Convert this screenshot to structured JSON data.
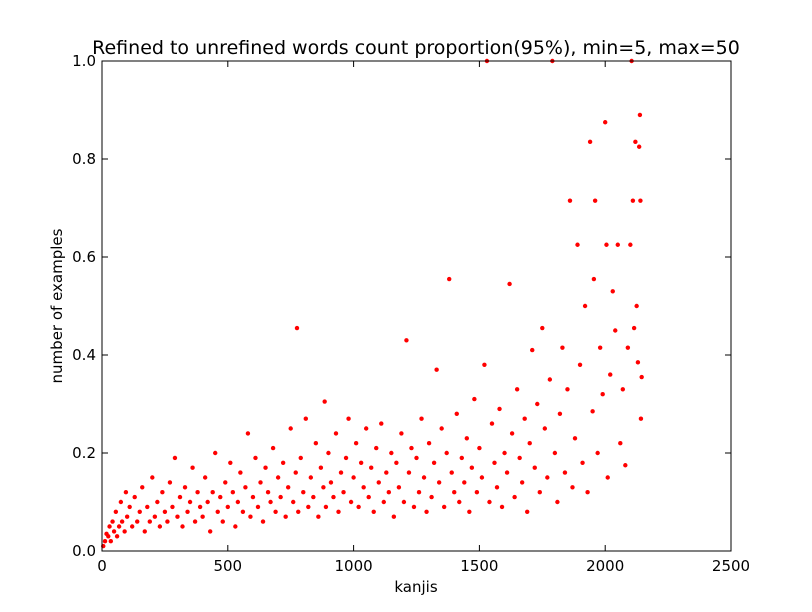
{
  "chart_data": {
    "type": "scatter",
    "title": "Refined to unrefined words count proportion(95%), min=5, max=50",
    "xlabel": "kanjis",
    "ylabel": "number of examples",
    "xlim": [
      0,
      2500
    ],
    "ylim": [
      0,
      1.0
    ],
    "xticks": [
      0,
      500,
      1000,
      1500,
      2000,
      2500
    ],
    "yticks": [
      0.0,
      0.2,
      0.4,
      0.6,
      0.8,
      1.0
    ],
    "xtick_labels": [
      "0",
      "500",
      "1000",
      "1500",
      "2000",
      "2500"
    ],
    "ytick_labels": [
      "0.0",
      "0.2",
      "0.4",
      "0.6",
      "0.8",
      "1.0"
    ],
    "grid": false,
    "marker_color": "#ff0000",
    "points": [
      [
        5,
        0.01
      ],
      [
        12,
        0.02
      ],
      [
        18,
        0.035
      ],
      [
        25,
        0.03
      ],
      [
        30,
        0.05
      ],
      [
        35,
        0.02
      ],
      [
        42,
        0.06
      ],
      [
        48,
        0.04
      ],
      [
        55,
        0.08
      ],
      [
        60,
        0.03
      ],
      [
        68,
        0.05
      ],
      [
        75,
        0.1
      ],
      [
        80,
        0.06
      ],
      [
        90,
        0.04
      ],
      [
        95,
        0.12
      ],
      [
        100,
        0.07
      ],
      [
        110,
        0.09
      ],
      [
        120,
        0.05
      ],
      [
        130,
        0.11
      ],
      [
        140,
        0.06
      ],
      [
        150,
        0.08
      ],
      [
        160,
        0.13
      ],
      [
        170,
        0.04
      ],
      [
        180,
        0.09
      ],
      [
        190,
        0.06
      ],
      [
        200,
        0.15
      ],
      [
        210,
        0.07
      ],
      [
        220,
        0.1
      ],
      [
        230,
        0.05
      ],
      [
        240,
        0.12
      ],
      [
        250,
        0.08
      ],
      [
        260,
        0.06
      ],
      [
        270,
        0.14
      ],
      [
        280,
        0.09
      ],
      [
        290,
        0.19
      ],
      [
        300,
        0.07
      ],
      [
        310,
        0.11
      ],
      [
        320,
        0.05
      ],
      [
        330,
        0.13
      ],
      [
        340,
        0.08
      ],
      [
        350,
        0.1
      ],
      [
        360,
        0.17
      ],
      [
        370,
        0.06
      ],
      [
        380,
        0.12
      ],
      [
        390,
        0.09
      ],
      [
        400,
        0.07
      ],
      [
        410,
        0.15
      ],
      [
        420,
        0.1
      ],
      [
        430,
        0.04
      ],
      [
        440,
        0.12
      ],
      [
        450,
        0.2
      ],
      [
        460,
        0.08
      ],
      [
        470,
        0.11
      ],
      [
        480,
        0.06
      ],
      [
        490,
        0.14
      ],
      [
        500,
        0.09
      ],
      [
        510,
        0.18
      ],
      [
        520,
        0.12
      ],
      [
        530,
        0.05
      ],
      [
        540,
        0.1
      ],
      [
        550,
        0.16
      ],
      [
        560,
        0.08
      ],
      [
        570,
        0.13
      ],
      [
        580,
        0.24
      ],
      [
        590,
        0.07
      ],
      [
        600,
        0.11
      ],
      [
        610,
        0.19
      ],
      [
        620,
        0.09
      ],
      [
        630,
        0.14
      ],
      [
        640,
        0.06
      ],
      [
        650,
        0.17
      ],
      [
        660,
        0.12
      ],
      [
        670,
        0.1
      ],
      [
        680,
        0.21
      ],
      [
        690,
        0.08
      ],
      [
        700,
        0.15
      ],
      [
        710,
        0.11
      ],
      [
        720,
        0.18
      ],
      [
        730,
        0.07
      ],
      [
        740,
        0.13
      ],
      [
        750,
        0.25
      ],
      [
        760,
        0.1
      ],
      [
        770,
        0.16
      ],
      [
        775,
        0.455
      ],
      [
        780,
        0.08
      ],
      [
        790,
        0.19
      ],
      [
        800,
        0.12
      ],
      [
        810,
        0.27
      ],
      [
        820,
        0.09
      ],
      [
        830,
        0.15
      ],
      [
        840,
        0.11
      ],
      [
        850,
        0.22
      ],
      [
        860,
        0.07
      ],
      [
        870,
        0.17
      ],
      [
        880,
        0.13
      ],
      [
        885,
        0.305
      ],
      [
        890,
        0.09
      ],
      [
        900,
        0.2
      ],
      [
        910,
        0.14
      ],
      [
        920,
        0.11
      ],
      [
        930,
        0.24
      ],
      [
        940,
        0.08
      ],
      [
        950,
        0.16
      ],
      [
        960,
        0.12
      ],
      [
        970,
        0.19
      ],
      [
        980,
        0.27
      ],
      [
        990,
        0.1
      ],
      [
        1000,
        0.15
      ],
      [
        1010,
        0.22
      ],
      [
        1020,
        0.09
      ],
      [
        1030,
        0.18
      ],
      [
        1040,
        0.13
      ],
      [
        1050,
        0.25
      ],
      [
        1060,
        0.11
      ],
      [
        1070,
        0.17
      ],
      [
        1080,
        0.08
      ],
      [
        1090,
        0.21
      ],
      [
        1100,
        0.14
      ],
      [
        1110,
        0.26
      ],
      [
        1120,
        0.1
      ],
      [
        1130,
        0.16
      ],
      [
        1140,
        0.12
      ],
      [
        1150,
        0.2
      ],
      [
        1160,
        0.07
      ],
      [
        1170,
        0.18
      ],
      [
        1180,
        0.13
      ],
      [
        1190,
        0.24
      ],
      [
        1200,
        0.1
      ],
      [
        1210,
        0.43
      ],
      [
        1220,
        0.16
      ],
      [
        1230,
        0.21
      ],
      [
        1240,
        0.09
      ],
      [
        1250,
        0.19
      ],
      [
        1260,
        0.12
      ],
      [
        1270,
        0.27
      ],
      [
        1280,
        0.15
      ],
      [
        1290,
        0.08
      ],
      [
        1300,
        0.22
      ],
      [
        1310,
        0.11
      ],
      [
        1320,
        0.18
      ],
      [
        1330,
        0.37
      ],
      [
        1340,
        0.14
      ],
      [
        1350,
        0.25
      ],
      [
        1360,
        0.09
      ],
      [
        1370,
        0.2
      ],
      [
        1380,
        0.555
      ],
      [
        1390,
        0.16
      ],
      [
        1400,
        0.12
      ],
      [
        1410,
        0.28
      ],
      [
        1420,
        0.1
      ],
      [
        1430,
        0.19
      ],
      [
        1440,
        0.14
      ],
      [
        1450,
        0.23
      ],
      [
        1460,
        0.08
      ],
      [
        1470,
        0.17
      ],
      [
        1480,
        0.31
      ],
      [
        1490,
        0.12
      ],
      [
        1500,
        0.21
      ],
      [
        1510,
        0.15
      ],
      [
        1520,
        0.38
      ],
      [
        1530,
        1.0
      ],
      [
        1540,
        0.1
      ],
      [
        1550,
        0.26
      ],
      [
        1560,
        0.18
      ],
      [
        1570,
        0.13
      ],
      [
        1580,
        0.29
      ],
      [
        1590,
        0.09
      ],
      [
        1600,
        0.2
      ],
      [
        1610,
        0.16
      ],
      [
        1620,
        0.545
      ],
      [
        1630,
        0.24
      ],
      [
        1640,
        0.11
      ],
      [
        1650,
        0.33
      ],
      [
        1660,
        0.19
      ],
      [
        1670,
        0.14
      ],
      [
        1680,
        0.27
      ],
      [
        1690,
        0.08
      ],
      [
        1700,
        0.22
      ],
      [
        1710,
        0.41
      ],
      [
        1720,
        0.17
      ],
      [
        1730,
        0.3
      ],
      [
        1740,
        0.12
      ],
      [
        1750,
        0.455
      ],
      [
        1760,
        0.25
      ],
      [
        1770,
        0.15
      ],
      [
        1780,
        0.35
      ],
      [
        1790,
        1.0
      ],
      [
        1800,
        0.2
      ],
      [
        1810,
        0.1
      ],
      [
        1820,
        0.28
      ],
      [
        1830,
        0.415
      ],
      [
        1840,
        0.16
      ],
      [
        1850,
        0.33
      ],
      [
        1860,
        0.715
      ],
      [
        1870,
        0.13
      ],
      [
        1880,
        0.23
      ],
      [
        1890,
        0.625
      ],
      [
        1900,
        0.38
      ],
      [
        1910,
        0.18
      ],
      [
        1920,
        0.5
      ],
      [
        1930,
        0.12
      ],
      [
        1940,
        0.835
      ],
      [
        1950,
        0.285
      ],
      [
        1955,
        0.555
      ],
      [
        1960,
        0.715
      ],
      [
        1970,
        0.2
      ],
      [
        1980,
        0.415
      ],
      [
        1990,
        0.32
      ],
      [
        2000,
        0.875
      ],
      [
        2005,
        0.625
      ],
      [
        2010,
        0.15
      ],
      [
        2020,
        0.36
      ],
      [
        2030,
        0.53
      ],
      [
        2040,
        0.45
      ],
      [
        2050,
        0.625
      ],
      [
        2060,
        0.22
      ],
      [
        2070,
        0.33
      ],
      [
        2080,
        0.175
      ],
      [
        2090,
        0.415
      ],
      [
        2100,
        0.625
      ],
      [
        2105,
        1.0
      ],
      [
        2110,
        0.715
      ],
      [
        2115,
        0.455
      ],
      [
        2120,
        0.835
      ],
      [
        2125,
        0.5
      ],
      [
        2130,
        0.385
      ],
      [
        2135,
        0.825
      ],
      [
        2138,
        0.89
      ],
      [
        2140,
        0.715
      ],
      [
        2142,
        0.27
      ],
      [
        2145,
        0.355
      ]
    ]
  }
}
